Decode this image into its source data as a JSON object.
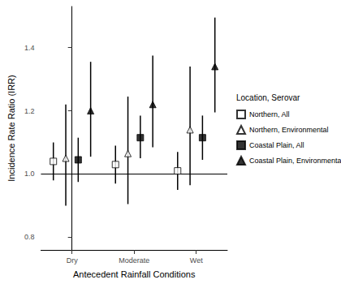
{
  "chart_data": {
    "type": "errorbar_dot",
    "x_label": "Antecedent Rainfall Conditions",
    "y_label": "Incidence Rate Ratio (IRR)",
    "legend_title": "Location, Serovar",
    "legend": "right",
    "grid": false,
    "categories": [
      "Dry",
      "Moderate",
      "Wet"
    ],
    "ylim": [
      0.76,
      1.53
    ],
    "yticks": [
      0.8,
      {
        "value": 1,
        "label": "1.0"
      },
      1.2,
      1.4
    ],
    "reference_line": 1,
    "series": [
      {
        "name": "Northern, All",
        "color": "#000000",
        "marker": "square-open",
        "values": [
          1.04,
          1.03,
          1.01
        ],
        "lower": [
          0.98,
          0.97,
          0.95
        ],
        "upper": [
          1.1,
          1.09,
          1.07
        ]
      },
      {
        "name": "Northern, Environmental",
        "color": "#000000",
        "marker": "triangle-open",
        "values": [
          1.05,
          1.065,
          1.14
        ],
        "lower": [
          0.9,
          0.905,
          0.965
        ],
        "upper": [
          1.22,
          1.245,
          1.34
        ]
      },
      {
        "name": "Coastal Plain, All",
        "color": "#000000",
        "marker": "square",
        "values": [
          1.045,
          1.115,
          1.115
        ],
        "lower": [
          0.975,
          1.05,
          1.045
        ],
        "upper": [
          1.115,
          1.185,
          1.185
        ]
      },
      {
        "name": "Coastal Plain, Environmental",
        "color": "#000000",
        "marker": "triangle",
        "values": [
          1.2,
          1.22,
          1.34
        ],
        "lower": [
          1.055,
          1.085,
          1.195
        ],
        "upper": [
          1.355,
          1.375,
          1.495
        ]
      }
    ]
  }
}
